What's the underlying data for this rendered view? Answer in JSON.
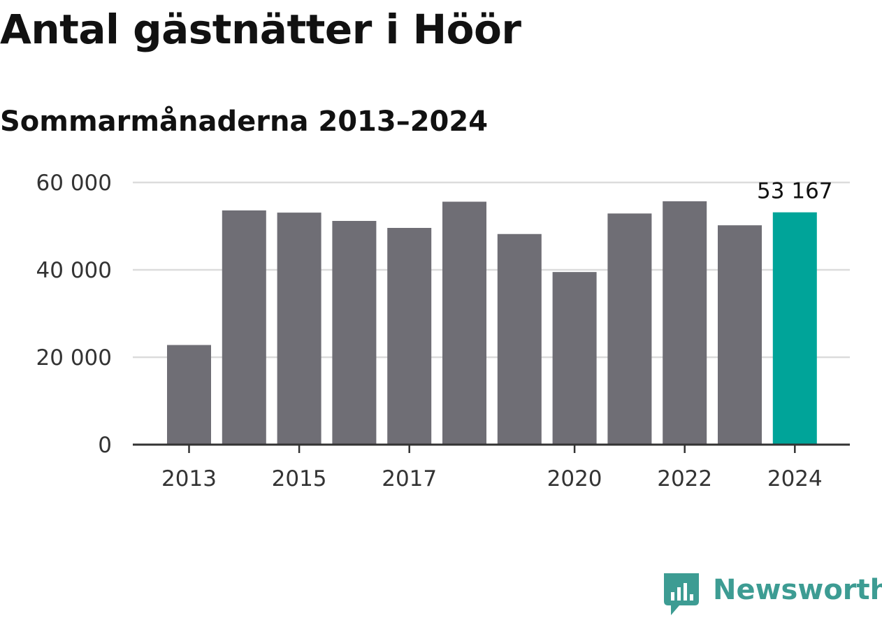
{
  "header": {
    "title": "Antal gästnätter i Höör",
    "subtitle": "Sommarmånaderna 2013–2024"
  },
  "colors": {
    "bar": "#6f6e75",
    "highlight": "#00a499",
    "grid": "#dcdcdc",
    "axis": "#333333",
    "brand": "#3d9c93"
  },
  "chart_data": {
    "type": "bar",
    "title": "Antal gästnätter i Höör",
    "subtitle": "Sommarmånaderna 2013–2024",
    "categories": [
      "2013",
      "2014",
      "2015",
      "2016",
      "2017",
      "2018",
      "2019",
      "2020",
      "2021",
      "2022",
      "2023",
      "2024"
    ],
    "values": [
      22800,
      53600,
      53100,
      51200,
      49600,
      55600,
      48200,
      39500,
      52900,
      55700,
      50200,
      53167
    ],
    "x_tick_labels": [
      "2013",
      "2015",
      "2017",
      "2020",
      "2022",
      "2024"
    ],
    "y_ticks": [
      0,
      20000,
      40000,
      60000
    ],
    "y_tick_labels": [
      "0",
      "20 000",
      "40 000",
      "60 000"
    ],
    "ylim": [
      0,
      60000
    ],
    "grid": true,
    "highlight_index": 11,
    "annotation": {
      "category": "2024",
      "text": "53 167"
    }
  },
  "branding": {
    "name": "Newsworthy",
    "logo_icon": "newsworthy-logo-icon"
  }
}
